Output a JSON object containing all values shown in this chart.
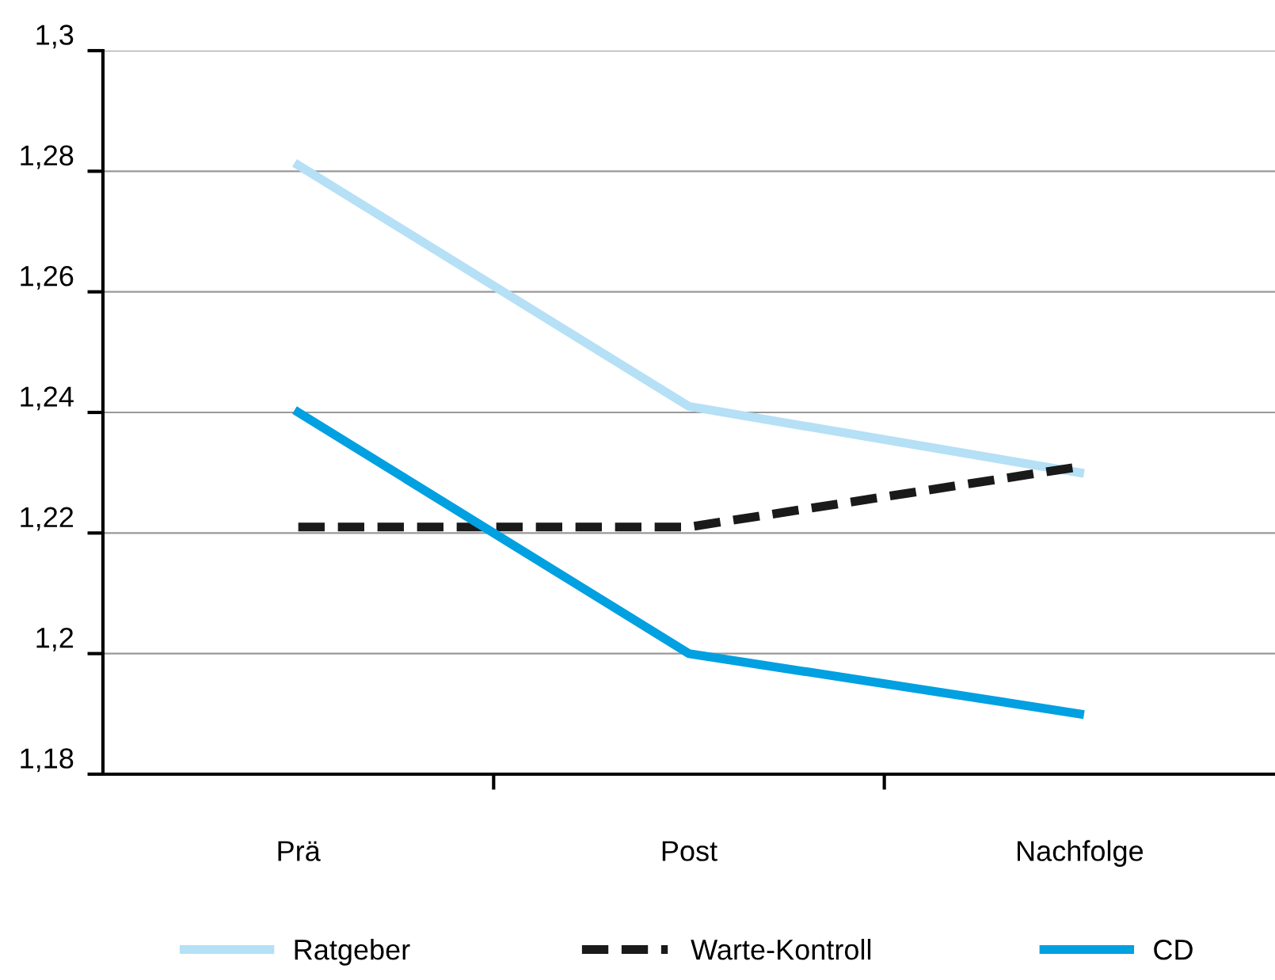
{
  "chart_data": {
    "type": "line",
    "categories": [
      "Prä",
      "Post",
      "Nachfolge"
    ],
    "series": [
      {
        "name": "Ratgeber",
        "color": "#b5e0f6",
        "values": [
          1.281,
          1.241,
          1.23
        ]
      },
      {
        "name": "Warte-Kontroll",
        "color": "#1a1a1a",
        "values": [
          1.221,
          1.221,
          1.231
        ],
        "line_style": "dashed"
      },
      {
        "name": "CD",
        "color": "#00a0e1",
        "values": [
          1.24,
          1.2,
          1.19
        ]
      }
    ],
    "ylim": [
      1.18,
      1.3
    ],
    "yticks": [
      {
        "value": 1.18,
        "label": "1,18"
      },
      {
        "value": 1.2,
        "label": "1,2"
      },
      {
        "value": 1.22,
        "label": "1,22"
      },
      {
        "value": 1.24,
        "label": "1,24"
      },
      {
        "value": 1.26,
        "label": "1,26"
      },
      {
        "value": 1.28,
        "label": "1,28"
      },
      {
        "value": 1.3,
        "label": "1,3"
      }
    ],
    "grid": "y",
    "legend": "bottom",
    "marker": "none",
    "line_style": "solid"
  }
}
